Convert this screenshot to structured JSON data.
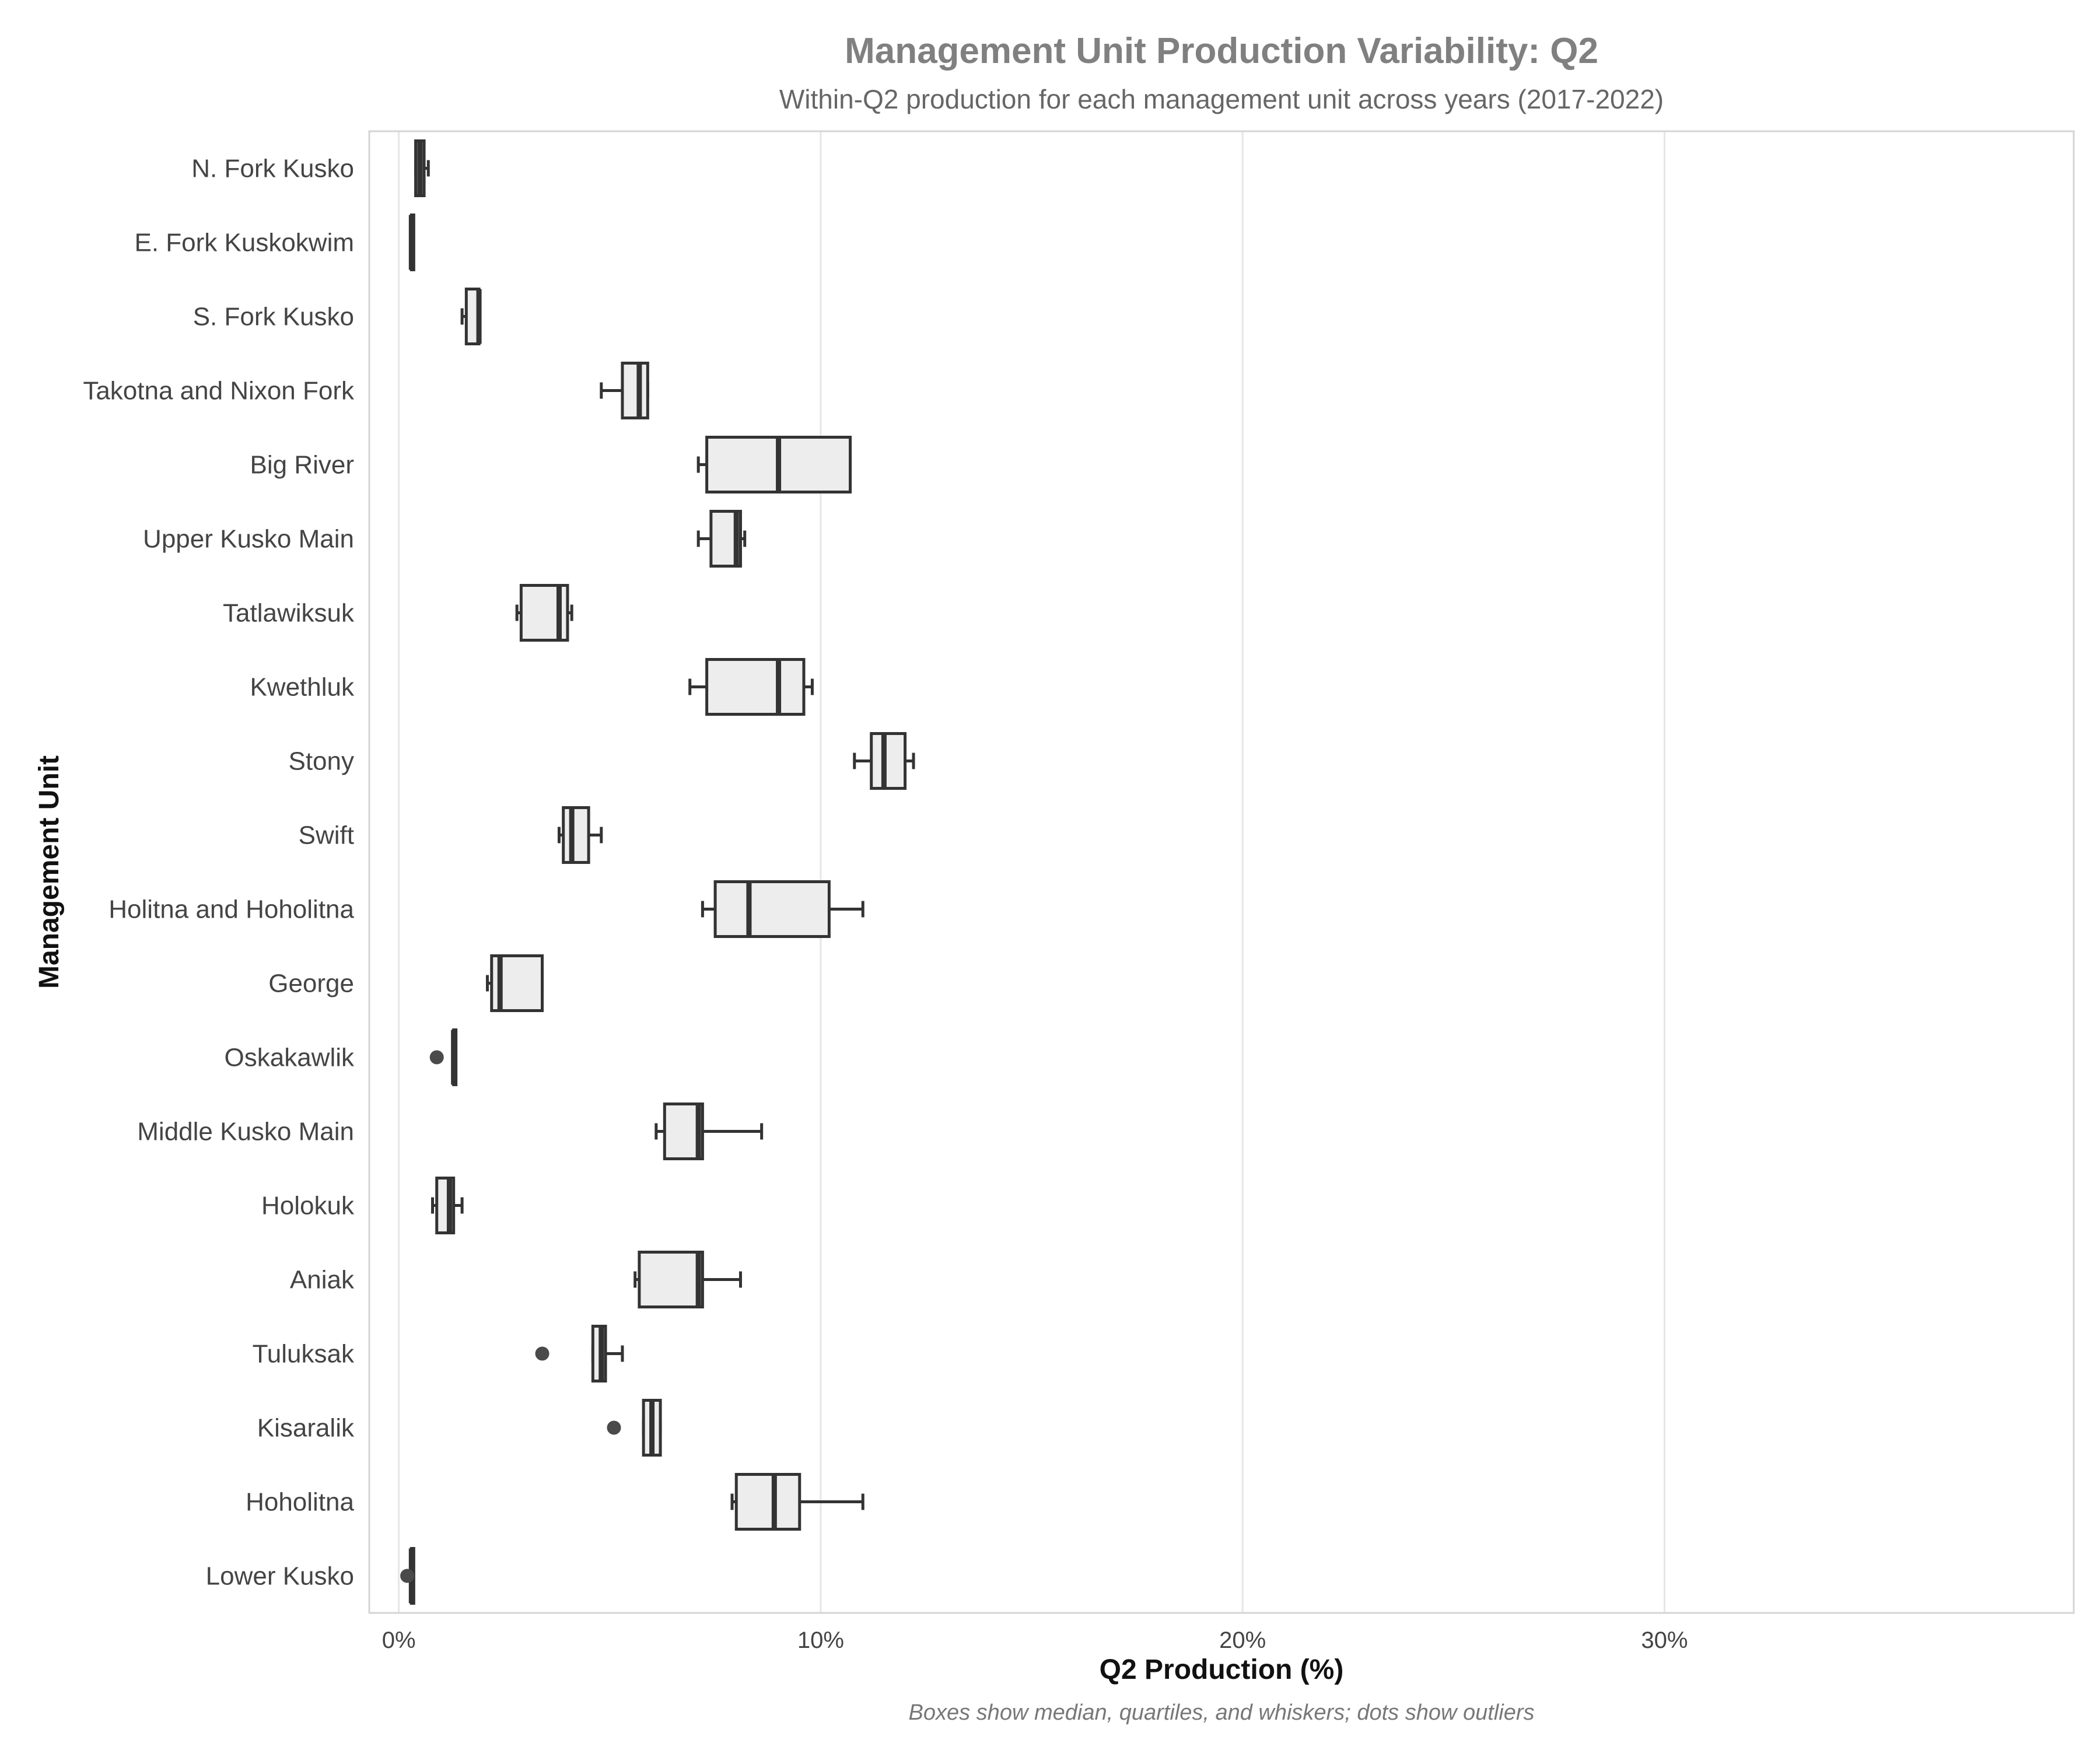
{
  "chart_data": {
    "type": "box",
    "orientation": "horizontal",
    "title": "Management Unit Production Variability: Q2",
    "subtitle": "Within-Q2 production for each management unit across years (2017-2022)",
    "xlabel": "Q2 Production (%)",
    "ylabel": "Management Unit",
    "caption": "Boxes show median, quartiles, and whiskers; dots show outliers",
    "xlim": [
      -0.7,
      39.7
    ],
    "xticks": [
      {
        "value": 0,
        "label": "0%"
      },
      {
        "value": 10,
        "label": "10%"
      },
      {
        "value": 20,
        "label": "20%"
      },
      {
        "value": 30,
        "label": "30%"
      }
    ],
    "grid": true,
    "colors": {
      "box_fill": "#ededed",
      "box_stroke": "#333333",
      "outlier": "#4a4a4a",
      "title": "#808080"
    },
    "units": [
      {
        "name": "N. Fork Kusko",
        "whislo": 0.4,
        "q1": 0.4,
        "median": 0.5,
        "q3": 0.6,
        "whishi": 0.7,
        "outliers": []
      },
      {
        "name": "E. Fork Kuskokwim",
        "whislo": 0.3,
        "q1": 0.3,
        "median": 0.3,
        "q3": 0.3,
        "whishi": 0.3,
        "outliers": []
      },
      {
        "name": "S. Fork Kusko",
        "whislo": 1.5,
        "q1": 1.6,
        "median": 1.9,
        "q3": 1.9,
        "whishi": 1.9,
        "outliers": []
      },
      {
        "name": "Takotna and Nixon Fork",
        "whislo": 4.8,
        "q1": 5.3,
        "median": 5.7,
        "q3": 5.9,
        "whishi": 5.9,
        "outliers": []
      },
      {
        "name": "Big River",
        "whislo": 7.1,
        "q1": 7.3,
        "median": 9.0,
        "q3": 10.7,
        "whishi": 10.7,
        "outliers": []
      },
      {
        "name": "Upper Kusko Main",
        "whislo": 7.1,
        "q1": 7.4,
        "median": 8.0,
        "q3": 8.1,
        "whishi": 8.2,
        "outliers": []
      },
      {
        "name": "Tatlawiksuk",
        "whislo": 2.8,
        "q1": 2.9,
        "median": 3.8,
        "q3": 4.0,
        "whishi": 4.1,
        "outliers": []
      },
      {
        "name": "Kwethluk",
        "whislo": 6.9,
        "q1": 7.3,
        "median": 9.0,
        "q3": 9.6,
        "whishi": 9.8,
        "outliers": []
      },
      {
        "name": "Stony",
        "whislo": 10.8,
        "q1": 11.2,
        "median": 11.5,
        "q3": 12.0,
        "whishi": 12.2,
        "outliers": []
      },
      {
        "name": "Swift",
        "whislo": 3.8,
        "q1": 3.9,
        "median": 4.1,
        "q3": 4.5,
        "whishi": 4.8,
        "outliers": []
      },
      {
        "name": "Holitna and Hoholitna",
        "whislo": 7.2,
        "q1": 7.5,
        "median": 8.3,
        "q3": 10.2,
        "whishi": 11.0,
        "outliers": []
      },
      {
        "name": "George",
        "whislo": 2.1,
        "q1": 2.2,
        "median": 2.4,
        "q3": 3.4,
        "whishi": 3.4,
        "outliers": []
      },
      {
        "name": "Oskakawlik",
        "whislo": 1.3,
        "q1": 1.3,
        "median": 1.3,
        "q3": 1.3,
        "whishi": 1.3,
        "outliers": [
          0.9
        ]
      },
      {
        "name": "Middle Kusko Main",
        "whislo": 6.1,
        "q1": 6.3,
        "median": 7.1,
        "q3": 7.2,
        "whishi": 8.6,
        "outliers": []
      },
      {
        "name": "Holokuk",
        "whislo": 0.8,
        "q1": 0.9,
        "median": 1.2,
        "q3": 1.3,
        "whishi": 1.5,
        "outliers": []
      },
      {
        "name": "Aniak",
        "whislo": 5.6,
        "q1": 5.7,
        "median": 7.1,
        "q3": 7.2,
        "whishi": 8.1,
        "outliers": []
      },
      {
        "name": "Tuluksak",
        "whislo": 4.6,
        "q1": 4.6,
        "median": 4.8,
        "q3": 4.9,
        "whishi": 5.3,
        "outliers": [
          3.4
        ]
      },
      {
        "name": "Kisaralik",
        "whislo": 5.8,
        "q1": 5.8,
        "median": 6.0,
        "q3": 6.2,
        "whishi": 6.2,
        "outliers": [
          5.1
        ]
      },
      {
        "name": "Hoholitna",
        "whislo": 7.9,
        "q1": 8.0,
        "median": 8.9,
        "q3": 9.5,
        "whishi": 11.0,
        "outliers": []
      },
      {
        "name": "Lower Kusko",
        "whislo": 0.3,
        "q1": 0.3,
        "median": 0.3,
        "q3": 0.3,
        "whishi": 0.3,
        "outliers": [
          0.2
        ]
      }
    ]
  }
}
